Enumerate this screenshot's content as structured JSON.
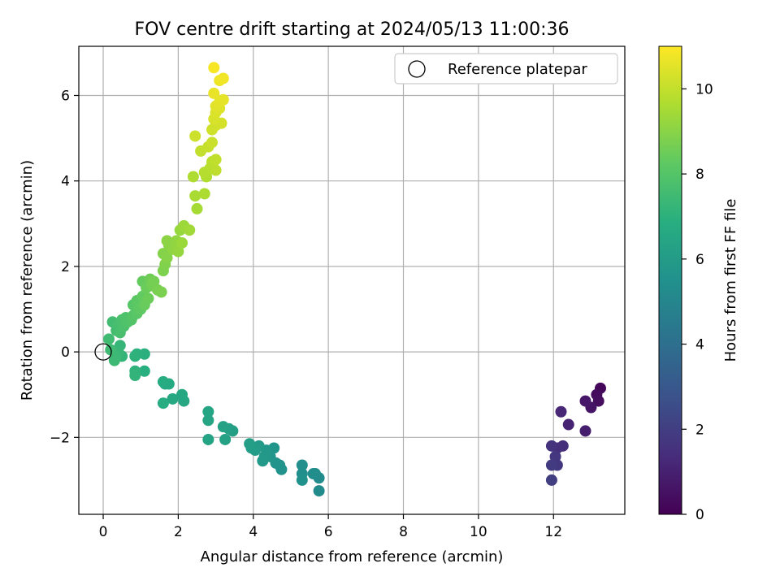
{
  "chart_data": {
    "type": "scatter",
    "title": "FOV centre drift starting at 2024/05/13 11:00:36",
    "xlabel": "Angular distance from reference (arcmin)",
    "ylabel": "Rotation from reference (arcmin)",
    "xlim": [
      -0.65,
      13.9
    ],
    "ylim": [
      -3.8,
      7.15
    ],
    "xticks": [
      0,
      2,
      4,
      6,
      8,
      10,
      12
    ],
    "yticks": [
      -2,
      0,
      2,
      4,
      6
    ],
    "grid": true,
    "legend": {
      "position": "top-right",
      "entries": [
        "Reference platepar"
      ]
    },
    "reference_point": {
      "x": 0,
      "y": 0
    },
    "colorbar": {
      "label": "Hours from first FF file",
      "range": [
        0,
        11
      ],
      "ticks": [
        0,
        2,
        4,
        6,
        8,
        10
      ],
      "colormap": "viridis"
    },
    "series": [
      {
        "points": [
          {
            "x": 13.25,
            "y": -0.85,
            "t": 0.2
          },
          {
            "x": 13.15,
            "y": -1.0,
            "t": 0.3
          },
          {
            "x": 13.2,
            "y": -1.15,
            "t": 0.4
          },
          {
            "x": 13.0,
            "y": -1.3,
            "t": 0.6
          },
          {
            "x": 12.85,
            "y": -1.15,
            "t": 0.7
          },
          {
            "x": 12.85,
            "y": -1.85,
            "t": 0.9
          },
          {
            "x": 12.4,
            "y": -1.7,
            "t": 1.1
          },
          {
            "x": 12.2,
            "y": -1.4,
            "t": 1.2
          },
          {
            "x": 12.25,
            "y": -2.2,
            "t": 1.4
          },
          {
            "x": 12.1,
            "y": -2.25,
            "t": 1.5
          },
          {
            "x": 11.95,
            "y": -2.2,
            "t": 1.6
          },
          {
            "x": 12.05,
            "y": -2.45,
            "t": 1.7
          },
          {
            "x": 12.1,
            "y": -2.65,
            "t": 1.8
          },
          {
            "x": 11.95,
            "y": -2.65,
            "t": 1.9
          },
          {
            "x": 11.95,
            "y": -3.0,
            "t": 2.0
          },
          {
            "x": 5.75,
            "y": -3.25,
            "t": 5.2
          },
          {
            "x": 5.75,
            "y": -2.95,
            "t": 5.25
          },
          {
            "x": 5.65,
            "y": -2.85,
            "t": 5.3
          },
          {
            "x": 5.6,
            "y": -2.85,
            "t": 5.35
          },
          {
            "x": 5.3,
            "y": -2.65,
            "t": 5.4
          },
          {
            "x": 5.3,
            "y": -2.85,
            "t": 5.45
          },
          {
            "x": 5.3,
            "y": -3.0,
            "t": 5.5
          },
          {
            "x": 4.75,
            "y": -2.75,
            "t": 5.55
          },
          {
            "x": 4.7,
            "y": -2.65,
            "t": 5.6
          },
          {
            "x": 4.6,
            "y": -2.6,
            "t": 5.65
          },
          {
            "x": 4.55,
            "y": -2.25,
            "t": 5.7
          },
          {
            "x": 4.45,
            "y": -2.45,
            "t": 5.75
          },
          {
            "x": 4.35,
            "y": -2.3,
            "t": 5.8
          },
          {
            "x": 4.3,
            "y": -2.45,
            "t": 5.85
          },
          {
            "x": 4.25,
            "y": -2.55,
            "t": 5.9
          },
          {
            "x": 4.15,
            "y": -2.2,
            "t": 5.95
          },
          {
            "x": 4.05,
            "y": -2.3,
            "t": 6.0
          },
          {
            "x": 3.95,
            "y": -2.25,
            "t": 6.05
          },
          {
            "x": 3.9,
            "y": -2.15,
            "t": 6.1
          },
          {
            "x": 3.45,
            "y": -1.85,
            "t": 6.15
          },
          {
            "x": 3.35,
            "y": -1.8,
            "t": 6.2
          },
          {
            "x": 3.25,
            "y": -2.05,
            "t": 6.25
          },
          {
            "x": 3.2,
            "y": -1.75,
            "t": 6.3
          },
          {
            "x": 2.8,
            "y": -2.05,
            "t": 6.35
          },
          {
            "x": 2.8,
            "y": -1.6,
            "t": 6.4
          },
          {
            "x": 2.8,
            "y": -1.4,
            "t": 6.45
          },
          {
            "x": 2.15,
            "y": -1.15,
            "t": 6.5
          },
          {
            "x": 2.1,
            "y": -1.0,
            "t": 6.55
          },
          {
            "x": 1.85,
            "y": -1.1,
            "t": 6.6
          },
          {
            "x": 1.75,
            "y": -0.75,
            "t": 6.65
          },
          {
            "x": 1.65,
            "y": -0.75,
            "t": 6.7
          },
          {
            "x": 1.6,
            "y": -0.7,
            "t": 6.75
          },
          {
            "x": 1.6,
            "y": -1.2,
            "t": 6.8
          },
          {
            "x": 1.1,
            "y": -0.45,
            "t": 6.9
          },
          {
            "x": 1.1,
            "y": -0.05,
            "t": 6.95
          },
          {
            "x": 0.9,
            "y": -0.05,
            "t": 7.0
          },
          {
            "x": 0.85,
            "y": -0.1,
            "t": 7.05
          },
          {
            "x": 0.85,
            "y": -0.45,
            "t": 7.1
          },
          {
            "x": 0.85,
            "y": -0.55,
            "t": 7.15
          },
          {
            "x": 0.5,
            "y": -0.1,
            "t": 7.2
          },
          {
            "x": 0.45,
            "y": 0.15,
            "t": 7.25
          },
          {
            "x": 0.4,
            "y": 0.0,
            "t": 7.3
          },
          {
            "x": 0.35,
            "y": -0.1,
            "t": 7.35
          },
          {
            "x": 0.3,
            "y": -0.2,
            "t": 7.4
          },
          {
            "x": 0.2,
            "y": 0.05,
            "t": 7.45
          },
          {
            "x": 0.15,
            "y": 0.3,
            "t": 7.5
          },
          {
            "x": 0.25,
            "y": 0.7,
            "t": 7.55
          },
          {
            "x": 0.35,
            "y": 0.5,
            "t": 7.6
          },
          {
            "x": 0.4,
            "y": 0.65,
            "t": 7.65
          },
          {
            "x": 0.45,
            "y": 0.45,
            "t": 7.7
          },
          {
            "x": 0.5,
            "y": 0.75,
            "t": 7.75
          },
          {
            "x": 0.55,
            "y": 0.6,
            "t": 7.8
          },
          {
            "x": 0.6,
            "y": 0.8,
            "t": 7.85
          },
          {
            "x": 0.65,
            "y": 0.7,
            "t": 7.9
          },
          {
            "x": 0.75,
            "y": 0.75,
            "t": 7.95
          },
          {
            "x": 0.8,
            "y": 0.85,
            "t": 8.0
          },
          {
            "x": 0.8,
            "y": 1.1,
            "t": 8.05
          },
          {
            "x": 0.9,
            "y": 0.9,
            "t": 8.1
          },
          {
            "x": 0.9,
            "y": 1.2,
            "t": 8.15
          },
          {
            "x": 0.95,
            "y": 1.05,
            "t": 8.2
          },
          {
            "x": 1.0,
            "y": 1.0,
            "t": 8.25
          },
          {
            "x": 1.05,
            "y": 1.3,
            "t": 8.3
          },
          {
            "x": 1.05,
            "y": 1.65,
            "t": 8.35
          },
          {
            "x": 1.1,
            "y": 1.1,
            "t": 8.4
          },
          {
            "x": 1.15,
            "y": 1.5,
            "t": 8.45
          },
          {
            "x": 1.2,
            "y": 1.25,
            "t": 8.5
          },
          {
            "x": 1.25,
            "y": 1.7,
            "t": 8.55
          },
          {
            "x": 1.3,
            "y": 1.55,
            "t": 8.6
          },
          {
            "x": 1.35,
            "y": 1.65,
            "t": 8.65
          },
          {
            "x": 1.45,
            "y": 1.45,
            "t": 8.7
          },
          {
            "x": 1.55,
            "y": 1.4,
            "t": 8.75
          },
          {
            "x": 1.6,
            "y": 1.9,
            "t": 8.8
          },
          {
            "x": 1.65,
            "y": 2.05,
            "t": 8.85
          },
          {
            "x": 1.6,
            "y": 2.3,
            "t": 8.9
          },
          {
            "x": 1.7,
            "y": 2.2,
            "t": 8.95
          },
          {
            "x": 1.75,
            "y": 2.5,
            "t": 9.0
          },
          {
            "x": 1.7,
            "y": 2.6,
            "t": 9.05
          },
          {
            "x": 1.85,
            "y": 2.4,
            "t": 9.1
          },
          {
            "x": 1.95,
            "y": 2.6,
            "t": 9.15
          },
          {
            "x": 2.0,
            "y": 2.35,
            "t": 9.2
          },
          {
            "x": 2.05,
            "y": 2.85,
            "t": 9.25
          },
          {
            "x": 2.1,
            "y": 2.55,
            "t": 9.3
          },
          {
            "x": 2.15,
            "y": 2.95,
            "t": 9.35
          },
          {
            "x": 2.3,
            "y": 2.85,
            "t": 9.4
          },
          {
            "x": 2.5,
            "y": 3.35,
            "t": 9.5
          },
          {
            "x": 2.45,
            "y": 3.65,
            "t": 9.55
          },
          {
            "x": 2.7,
            "y": 3.7,
            "t": 9.6
          },
          {
            "x": 2.4,
            "y": 4.1,
            "t": 9.65
          },
          {
            "x": 2.75,
            "y": 4.1,
            "t": 9.7
          },
          {
            "x": 2.7,
            "y": 4.2,
            "t": 9.75
          },
          {
            "x": 2.85,
            "y": 4.3,
            "t": 9.8
          },
          {
            "x": 2.9,
            "y": 4.45,
            "t": 9.85
          },
          {
            "x": 3.0,
            "y": 4.25,
            "t": 9.9
          },
          {
            "x": 3.0,
            "y": 4.5,
            "t": 9.95
          },
          {
            "x": 2.6,
            "y": 4.7,
            "t": 10.0
          },
          {
            "x": 2.8,
            "y": 4.8,
            "t": 10.05
          },
          {
            "x": 2.9,
            "y": 4.9,
            "t": 10.1
          },
          {
            "x": 2.45,
            "y": 5.05,
            "t": 10.15
          },
          {
            "x": 2.9,
            "y": 5.2,
            "t": 10.2
          },
          {
            "x": 3.0,
            "y": 5.3,
            "t": 10.25
          },
          {
            "x": 3.15,
            "y": 5.35,
            "t": 10.3
          },
          {
            "x": 2.95,
            "y": 5.45,
            "t": 10.35
          },
          {
            "x": 3.0,
            "y": 5.6,
            "t": 10.4
          },
          {
            "x": 3.1,
            "y": 5.7,
            "t": 10.45
          },
          {
            "x": 3.0,
            "y": 5.75,
            "t": 10.5
          },
          {
            "x": 3.1,
            "y": 5.85,
            "t": 10.55
          },
          {
            "x": 3.2,
            "y": 5.9,
            "t": 10.6
          },
          {
            "x": 2.95,
            "y": 6.05,
            "t": 10.65
          },
          {
            "x": 3.1,
            "y": 6.35,
            "t": 10.75
          },
          {
            "x": 3.2,
            "y": 6.4,
            "t": 10.8
          },
          {
            "x": 2.95,
            "y": 6.65,
            "t": 10.9
          }
        ]
      }
    ]
  }
}
